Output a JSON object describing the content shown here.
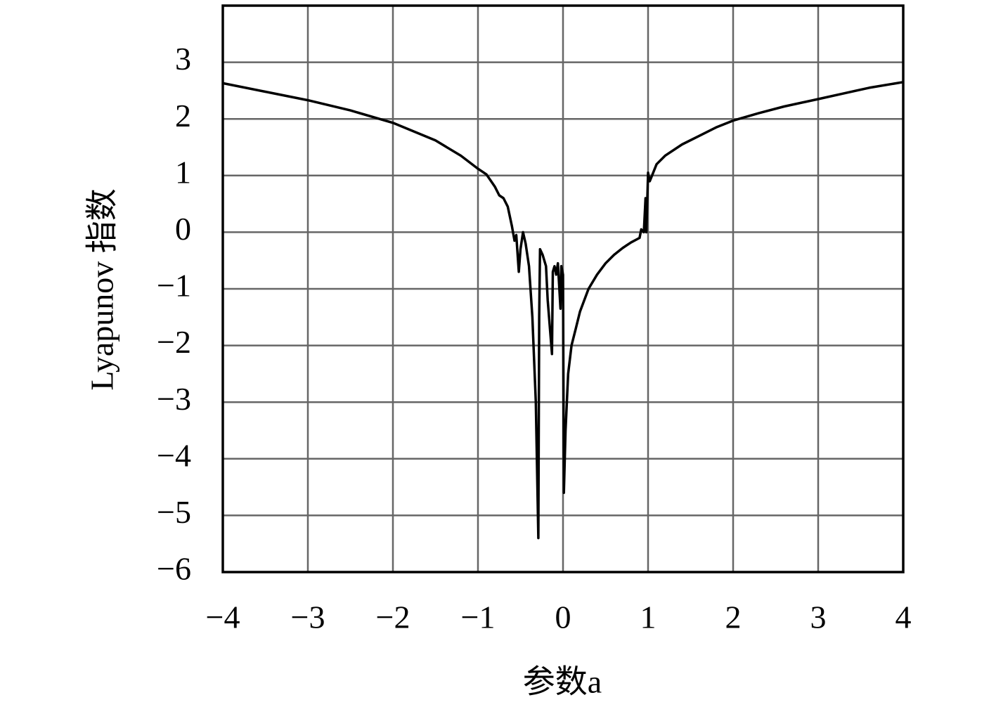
{
  "chart_data": {
    "type": "line",
    "x_label": "参数a",
    "y_label": "Lyapunov 指数",
    "color": "#000000",
    "grid": true,
    "xlim": [
      -4,
      4
    ],
    "ylim": [
      -6,
      4
    ],
    "xticks": [
      {
        "value": -4,
        "label": "−4"
      },
      {
        "value": -3,
        "label": "−3"
      },
      {
        "value": -2,
        "label": "−2"
      },
      {
        "value": -1,
        "label": "−1"
      },
      0,
      1,
      2,
      3,
      4
    ],
    "yticks": [
      {
        "value": -6,
        "label": "−6"
      },
      {
        "value": -5,
        "label": "−5"
      },
      {
        "value": -4,
        "label": "−4"
      },
      {
        "value": -3,
        "label": "−3"
      },
      {
        "value": -2,
        "label": "−2"
      },
      {
        "value": -1,
        "label": "−1"
      },
      0,
      1,
      2,
      3
    ],
    "x": [
      -4,
      -3.5,
      -3,
      -2.5,
      -2,
      -1.5,
      -1.2,
      -1,
      -0.9,
      -0.8,
      -0.75,
      -0.7,
      -0.65,
      -0.6,
      -0.57,
      -0.55,
      -0.52,
      -0.5,
      -0.47,
      -0.44,
      -0.4,
      -0.36,
      -0.32,
      -0.29,
      -0.28,
      -0.27,
      -0.24,
      -0.2,
      -0.18,
      -0.13,
      -0.12,
      -0.1,
      -0.08,
      -0.06,
      -0.03,
      -0.02,
      0,
      0.01,
      0.03,
      0.06,
      0.1,
      0.15,
      0.2,
      0.3,
      0.4,
      0.5,
      0.6,
      0.7,
      0.8,
      0.9,
      0.92,
      0.95,
      0.97,
      0.98,
      1,
      1.02,
      1.1,
      1.2,
      1.4,
      1.6,
      1.8,
      2,
      2.3,
      2.6,
      3,
      3.3,
      3.6,
      4
    ],
    "values": [
      2.63,
      2.48,
      2.33,
      2.15,
      1.93,
      1.62,
      1.35,
      1.12,
      1.02,
      0.8,
      0.65,
      0.6,
      0.45,
      0.1,
      -0.15,
      -0.05,
      -0.7,
      -0.3,
      0,
      -0.2,
      -0.6,
      -1.5,
      -3,
      -5.4,
      -1.5,
      -0.3,
      -0.4,
      -0.6,
      -1.2,
      -2.15,
      -0.7,
      -0.6,
      -0.75,
      -0.55,
      -1.35,
      -0.6,
      -0.75,
      -4.6,
      -3.5,
      -2.5,
      -2,
      -1.7,
      -1.4,
      -1,
      -0.75,
      -0.55,
      -0.4,
      -0.28,
      -0.18,
      -0.1,
      0.05,
      0,
      0.6,
      0,
      1.05,
      0.9,
      1.2,
      1.35,
      1.55,
      1.7,
      1.85,
      1.97,
      2.1,
      2.22,
      2.35,
      2.45,
      2.55,
      2.65
    ]
  }
}
